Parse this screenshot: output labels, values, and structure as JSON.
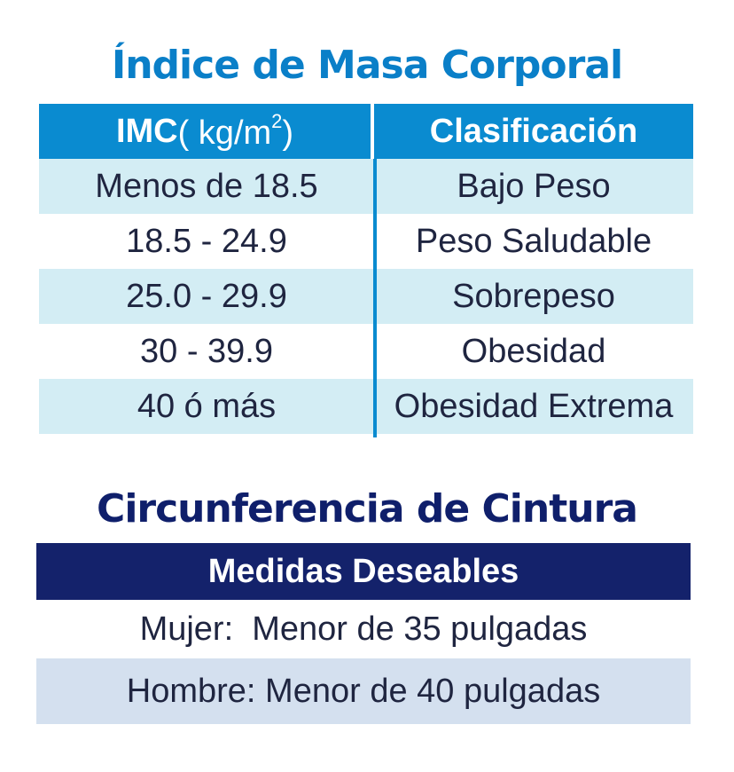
{
  "imc": {
    "title": "Índice de Masa Corporal",
    "header": {
      "col1_bold": "IMC",
      "col1_unit_open": " ( kg/m",
      "col1_sup": "2",
      "col1_close": ")",
      "col2": "Clasificación"
    },
    "rows": [
      {
        "range": "Menos de 18.5",
        "class": "Bajo Peso"
      },
      {
        "range": "18.5  - 24.9",
        "class": "Peso Saludable"
      },
      {
        "range": "25.0  - 29.9",
        "class": "Sobrepeso"
      },
      {
        "range": "30  - 39.9",
        "class": "Obesidad"
      },
      {
        "range": "40 ó más",
        "class": "Obesidad Extrema"
      }
    ],
    "colors": {
      "header": "#0a8bd0",
      "title": "#0a7fc8",
      "shade": "#d3edf4"
    }
  },
  "cintura": {
    "title": "Circunferencia de Cintura",
    "header": "Medidas Deseables",
    "rows": [
      "Mujer:  Menor de 35 pulgadas",
      "Hombre: Menor de 40 pulgadas"
    ],
    "colors": {
      "header": "#14226b",
      "alt": "#d4e0ef"
    }
  }
}
